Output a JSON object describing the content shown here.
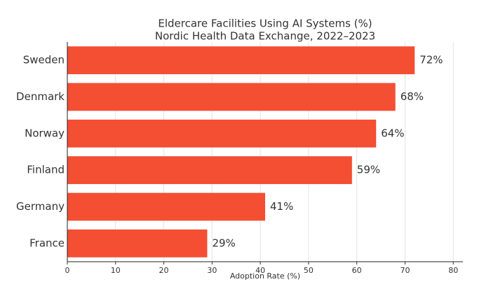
{
  "chart_data": {
    "type": "barh",
    "title": "Eldercare Facilities Using AI Systems (%)",
    "subtitle": "Nordic Health Data Exchange, 2022–2023",
    "x_label": "Adoption Rate (%)",
    "categories": [
      "Sweden",
      "Denmark",
      "Norway",
      "Finland",
      "Germany",
      "France"
    ],
    "values": [
      72,
      68,
      64,
      59,
      41,
      29
    ],
    "value_labels": [
      "72%",
      "68%",
      "64%",
      "59%",
      "41%",
      "29%"
    ],
    "color": "#f44e33",
    "xlim": [
      0,
      82
    ],
    "xticks": [
      0,
      10,
      20,
      30,
      40,
      50,
      60,
      70,
      80
    ],
    "grid": true
  }
}
